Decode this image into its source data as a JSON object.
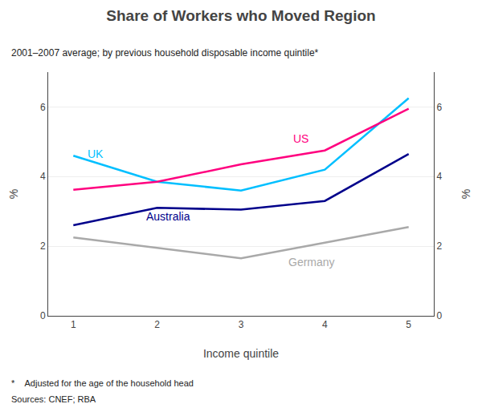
{
  "chart_data": {
    "type": "line",
    "title": "Share of Workers who Moved Region",
    "subtitle": "2001–2007 average; by previous household disposable income quintile*",
    "footnotes": [
      "*    Adjusted for the age of the household head",
      "Sources: CNEF; RBA"
    ],
    "xlabel": "Income quintile",
    "ylabel": "%",
    "y2label": "%",
    "x": [
      1,
      2,
      3,
      4,
      5
    ],
    "series": [
      {
        "name": "UK",
        "color": "#00BFFF",
        "values": [
          4.6,
          3.85,
          3.6,
          4.2,
          6.25
        ]
      },
      {
        "name": "US",
        "color": "#FF007F",
        "values": [
          3.62,
          3.85,
          4.35,
          4.75,
          5.95
        ]
      },
      {
        "name": "Australia",
        "color": "#00008B",
        "values": [
          2.6,
          3.1,
          3.05,
          3.3,
          4.65
        ]
      },
      {
        "name": "Germany",
        "color": "#A9A9A9",
        "values": [
          2.25,
          1.95,
          1.65,
          2.1,
          2.55
        ]
      }
    ],
    "xlim": [
      0.7,
      5.3
    ],
    "xticks": [
      1,
      2,
      3,
      4,
      5
    ],
    "ylim": [
      0,
      7
    ],
    "yticks": [
      0,
      2,
      4,
      6
    ],
    "y2lim": [
      0,
      7
    ],
    "y2ticks": [
      0,
      2,
      4,
      6
    ],
    "grid": true
  }
}
